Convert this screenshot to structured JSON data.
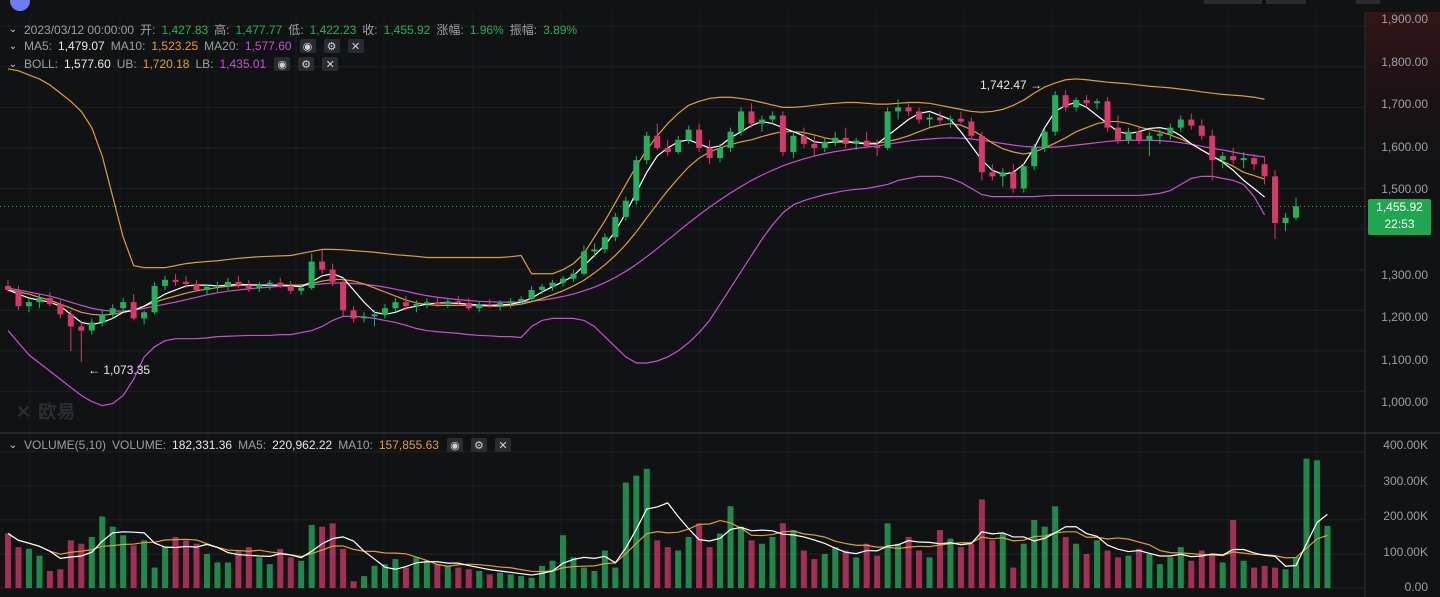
{
  "header": {
    "date": "2023/03/12 00:00:00",
    "open_label": "开:",
    "open": "1,427.83",
    "high_label": "高:",
    "high": "1,477.77",
    "low_label": "低:",
    "low": "1,422.23",
    "close_label": "收:",
    "close": "1,455.92",
    "change_label": "涨幅:",
    "change": "1.96%",
    "amplitude_label": "振幅:",
    "amplitude": "3.89%"
  },
  "ma_legend": {
    "ma5_label": "MA5:",
    "ma5": "1,479.07",
    "ma10_label": "MA10:",
    "ma10": "1,523.25",
    "ma20_label": "MA20:",
    "ma20": "1,577.60"
  },
  "boll_legend": {
    "boll_label": "BOLL:",
    "boll": "1,577.60",
    "ub_label": "UB:",
    "ub": "1,720.18",
    "lb_label": "LB:",
    "lb": "1,435.01"
  },
  "volume_legend": {
    "title": "VOLUME(5,10)",
    "volume_label": "VOLUME:",
    "volume": "182,331.36",
    "ma5_label": "MA5:",
    "ma5": "220,962.22",
    "ma10_label": "MA10:",
    "ma10": "157,855.63"
  },
  "price_axis": [
    "1,900.00",
    "1,800.00",
    "1,700.00",
    "1,600.00",
    "1,500.00",
    "1,300.00",
    "1,200.00",
    "1,100.00",
    "1,000.00"
  ],
  "volume_axis": [
    "400.00K",
    "300.00K",
    "200.00K",
    "100.00K",
    "0.00"
  ],
  "current_price": "1,455.92",
  "countdown": "22:53",
  "annotations": {
    "high": "1,742.47",
    "low": "1,073.35",
    "high_arrow": "→",
    "low_arrow": "←"
  },
  "watermark": "✕ 欧易",
  "icons": {
    "eye": "eye-icon",
    "gear": "gear-icon",
    "close": "close-icon",
    "chevron": "chevron-down-icon"
  },
  "colors": {
    "up": "#23b15d",
    "down": "#d63a6b",
    "ma5": "#ffffff",
    "ma10": "#e0a032",
    "ma20": "#c94fd6",
    "ub": "#e0a032",
    "lb": "#c94fd6",
    "boll_mid": "#ffffff"
  },
  "chart_data": {
    "type": "candlestick",
    "x_range": [
      0,
      126
    ],
    "y_range": [
      900,
      1935
    ],
    "volume_range": [
      0,
      420000
    ],
    "candles": [
      [
        1260,
        1275,
        1245,
        1250
      ],
      [
        1250,
        1260,
        1200,
        1210
      ],
      [
        1210,
        1230,
        1195,
        1220
      ],
      [
        1220,
        1240,
        1205,
        1230
      ],
      [
        1230,
        1245,
        1210,
        1215
      ],
      [
        1215,
        1225,
        1180,
        1190
      ],
      [
        1190,
        1200,
        1100,
        1160
      ],
      [
        1160,
        1175,
        1073,
        1150
      ],
      [
        1150,
        1180,
        1140,
        1170
      ],
      [
        1170,
        1200,
        1160,
        1190
      ],
      [
        1190,
        1215,
        1180,
        1205
      ],
      [
        1205,
        1230,
        1195,
        1220
      ],
      [
        1220,
        1240,
        1175,
        1180
      ],
      [
        1180,
        1200,
        1165,
        1195
      ],
      [
        1195,
        1270,
        1190,
        1260
      ],
      [
        1260,
        1285,
        1250,
        1275
      ],
      [
        1275,
        1290,
        1260,
        1270
      ],
      [
        1270,
        1285,
        1255,
        1265
      ],
      [
        1265,
        1275,
        1245,
        1250
      ],
      [
        1250,
        1265,
        1240,
        1258
      ],
      [
        1258,
        1270,
        1245,
        1260
      ],
      [
        1260,
        1280,
        1250,
        1270
      ],
      [
        1270,
        1285,
        1255,
        1262
      ],
      [
        1262,
        1275,
        1245,
        1255
      ],
      [
        1255,
        1270,
        1245,
        1262
      ],
      [
        1262,
        1275,
        1250,
        1268
      ],
      [
        1268,
        1280,
        1255,
        1260
      ],
      [
        1260,
        1272,
        1240,
        1248
      ],
      [
        1248,
        1265,
        1238,
        1255
      ],
      [
        1255,
        1340,
        1250,
        1320
      ],
      [
        1320,
        1350,
        1290,
        1300
      ],
      [
        1300,
        1315,
        1260,
        1270
      ],
      [
        1270,
        1280,
        1185,
        1200
      ],
      [
        1200,
        1210,
        1170,
        1180
      ],
      [
        1180,
        1195,
        1170,
        1185
      ],
      [
        1185,
        1200,
        1160,
        1190
      ],
      [
        1190,
        1215,
        1180,
        1205
      ],
      [
        1205,
        1230,
        1195,
        1220
      ],
      [
        1220,
        1235,
        1200,
        1210
      ],
      [
        1210,
        1225,
        1195,
        1215
      ],
      [
        1215,
        1230,
        1205,
        1220
      ],
      [
        1220,
        1232,
        1208,
        1215
      ],
      [
        1215,
        1228,
        1205,
        1222
      ],
      [
        1222,
        1235,
        1210,
        1218
      ],
      [
        1218,
        1230,
        1200,
        1205
      ],
      [
        1205,
        1222,
        1195,
        1215
      ],
      [
        1215,
        1228,
        1205,
        1212
      ],
      [
        1212,
        1225,
        1200,
        1218
      ],
      [
        1218,
        1230,
        1205,
        1222
      ],
      [
        1222,
        1235,
        1215,
        1228
      ],
      [
        1228,
        1260,
        1220,
        1250
      ],
      [
        1250,
        1265,
        1240,
        1258
      ],
      [
        1258,
        1275,
        1248,
        1268
      ],
      [
        1268,
        1285,
        1258,
        1278
      ],
      [
        1278,
        1300,
        1270,
        1290
      ],
      [
        1290,
        1360,
        1285,
        1345
      ],
      [
        1345,
        1365,
        1330,
        1350
      ],
      [
        1350,
        1390,
        1340,
        1380
      ],
      [
        1380,
        1440,
        1370,
        1430
      ],
      [
        1430,
        1480,
        1420,
        1470
      ],
      [
        1470,
        1580,
        1460,
        1570
      ],
      [
        1570,
        1640,
        1560,
        1630
      ],
      [
        1630,
        1660,
        1595,
        1600
      ],
      [
        1600,
        1620,
        1580,
        1590
      ],
      [
        1590,
        1630,
        1585,
        1620
      ],
      [
        1620,
        1655,
        1610,
        1645
      ],
      [
        1645,
        1660,
        1590,
        1600
      ],
      [
        1600,
        1620,
        1560,
        1575
      ],
      [
        1575,
        1610,
        1565,
        1600
      ],
      [
        1600,
        1650,
        1590,
        1640
      ],
      [
        1640,
        1700,
        1630,
        1690
      ],
      [
        1690,
        1710,
        1650,
        1660
      ],
      [
        1660,
        1680,
        1640,
        1670
      ],
      [
        1670,
        1690,
        1660,
        1680
      ],
      [
        1680,
        1690,
        1580,
        1590
      ],
      [
        1590,
        1640,
        1575,
        1630
      ],
      [
        1630,
        1650,
        1600,
        1610
      ],
      [
        1610,
        1630,
        1580,
        1600
      ],
      [
        1600,
        1625,
        1590,
        1615
      ],
      [
        1615,
        1640,
        1605,
        1625
      ],
      [
        1625,
        1650,
        1600,
        1610
      ],
      [
        1610,
        1625,
        1595,
        1618
      ],
      [
        1618,
        1640,
        1600,
        1605
      ],
      [
        1605,
        1620,
        1580,
        1600
      ],
      [
        1600,
        1700,
        1595,
        1690
      ],
      [
        1690,
        1720,
        1670,
        1700
      ],
      [
        1700,
        1715,
        1680,
        1690
      ],
      [
        1690,
        1700,
        1660,
        1670
      ],
      [
        1670,
        1685,
        1650,
        1675
      ],
      [
        1675,
        1690,
        1660,
        1668
      ],
      [
        1668,
        1680,
        1650,
        1672
      ],
      [
        1672,
        1690,
        1660,
        1665
      ],
      [
        1665,
        1675,
        1620,
        1630
      ],
      [
        1630,
        1640,
        1520,
        1540
      ],
      [
        1540,
        1560,
        1520,
        1530
      ],
      [
        1530,
        1550,
        1505,
        1540
      ],
      [
        1540,
        1560,
        1490,
        1500
      ],
      [
        1500,
        1560,
        1490,
        1555
      ],
      [
        1555,
        1610,
        1545,
        1600
      ],
      [
        1600,
        1645,
        1590,
        1640
      ],
      [
        1640,
        1740,
        1630,
        1730
      ],
      [
        1730,
        1742,
        1690,
        1700
      ],
      [
        1700,
        1725,
        1690,
        1718
      ],
      [
        1718,
        1730,
        1700,
        1710
      ],
      [
        1710,
        1722,
        1695,
        1715
      ],
      [
        1715,
        1725,
        1640,
        1650
      ],
      [
        1650,
        1680,
        1610,
        1620
      ],
      [
        1620,
        1650,
        1610,
        1640
      ],
      [
        1640,
        1650,
        1610,
        1620
      ],
      [
        1620,
        1640,
        1580,
        1630
      ],
      [
        1630,
        1645,
        1610,
        1635
      ],
      [
        1635,
        1660,
        1620,
        1650
      ],
      [
        1650,
        1680,
        1640,
        1670
      ],
      [
        1670,
        1685,
        1645,
        1655
      ],
      [
        1655,
        1670,
        1620,
        1630
      ],
      [
        1630,
        1645,
        1520,
        1570
      ],
      [
        1570,
        1590,
        1550,
        1580
      ],
      [
        1580,
        1600,
        1560,
        1570
      ],
      [
        1570,
        1590,
        1550,
        1575
      ],
      [
        1575,
        1585,
        1545,
        1560
      ],
      [
        1560,
        1580,
        1510,
        1530
      ],
      [
        1530,
        1545,
        1375,
        1415
      ],
      [
        1415,
        1440,
        1395,
        1428
      ],
      [
        1428,
        1478,
        1422,
        1456
      ]
    ],
    "volumes": [
      160000,
      120000,
      115000,
      95000,
      50000,
      55000,
      140000,
      130000,
      150000,
      210000,
      180000,
      155000,
      125000,
      140000,
      60000,
      120000,
      150000,
      140000,
      130000,
      100000,
      75000,
      75000,
      110000,
      120000,
      90000,
      70000,
      115000,
      90000,
      80000,
      185000,
      180000,
      190000,
      115000,
      20000,
      35000,
      65000,
      70000,
      85000,
      60000,
      90000,
      80000,
      70000,
      65000,
      60000,
      55000,
      50000,
      40000,
      45000,
      40000,
      35000,
      30000,
      65000,
      80000,
      155000,
      90000,
      60000,
      50000,
      110000,
      60000,
      310000,
      330000,
      350000,
      140000,
      120000,
      110000,
      150000,
      190000,
      120000,
      160000,
      240000,
      180000,
      140000,
      130000,
      150000,
      190000,
      170000,
      110000,
      85000,
      100000,
      120000,
      110000,
      90000,
      130000,
      95000,
      190000,
      130000,
      150000,
      110000,
      90000,
      170000,
      145000,
      120000,
      130000,
      260000,
      140000,
      160000,
      60000,
      130000,
      200000,
      180000,
      240000,
      150000,
      130000,
      100000,
      140000,
      110000,
      90000,
      95000,
      115000,
      100000,
      70000,
      90000,
      120000,
      80000,
      110000,
      100000,
      75000,
      200000,
      80000,
      60000,
      65000,
      60000,
      55000,
      90000,
      380000,
      375000,
      182331
    ],
    "ma5": [
      1250,
      1240,
      1230,
      1225,
      1220,
      1210,
      1190,
      1170,
      1165,
      1170,
      1180,
      1195,
      1200,
      1210,
      1225,
      1240,
      1250,
      1260,
      1262,
      1262,
      1260,
      1262,
      1264,
      1263,
      1262,
      1262,
      1262,
      1260,
      1258,
      1270,
      1285,
      1290,
      1280,
      1250,
      1220,
      1195,
      1190,
      1195,
      1205,
      1210,
      1215,
      1218,
      1218,
      1217,
      1215,
      1213,
      1212,
      1213,
      1215,
      1220,
      1230,
      1245,
      1258,
      1270,
      1285,
      1310,
      1335,
      1360,
      1395,
      1440,
      1490,
      1540,
      1580,
      1600,
      1615,
      1620,
      1610,
      1600,
      1605,
      1625,
      1640,
      1655,
      1665,
      1660,
      1650,
      1640,
      1630,
      1615,
      1612,
      1615,
      1615,
      1612,
      1610,
      1610,
      1630,
      1650,
      1670,
      1685,
      1690,
      1680,
      1670,
      1640,
      1605,
      1570,
      1545,
      1535,
      1540,
      1560,
      1600,
      1650,
      1690,
      1705,
      1712,
      1700,
      1680,
      1660,
      1640,
      1635,
      1640,
      1648,
      1650,
      1645,
      1630,
      1610,
      1595,
      1580,
      1565,
      1545,
      1520,
      1500,
      1479
    ],
    "ma10": [
      1252,
      1245,
      1240,
      1232,
      1225,
      1215,
      1205,
      1195,
      1190,
      1188,
      1190,
      1195,
      1200,
      1210,
      1220,
      1228,
      1235,
      1242,
      1248,
      1252,
      1256,
      1259,
      1261,
      1262,
      1262,
      1262,
      1262,
      1262,
      1262,
      1266,
      1272,
      1276,
      1276,
      1272,
      1265,
      1255,
      1245,
      1235,
      1225,
      1218,
      1214,
      1212,
      1212,
      1212,
      1212,
      1211,
      1210,
      1210,
      1212,
      1215,
      1221,
      1229,
      1238,
      1248,
      1260,
      1274,
      1292,
      1312,
      1335,
      1362,
      1393,
      1428,
      1462,
      1495,
      1525,
      1553,
      1575,
      1590,
      1600,
      1608,
      1615,
      1620,
      1628,
      1635,
      1640,
      1640,
      1638,
      1632,
      1625,
      1620,
      1617,
      1614,
      1612,
      1612,
      1616,
      1622,
      1630,
      1640,
      1650,
      1656,
      1660,
      1656,
      1645,
      1630,
      1612,
      1598,
      1590,
      1585,
      1590,
      1600,
      1612,
      1625,
      1640,
      1650,
      1660,
      1665,
      1665,
      1660,
      1652,
      1645,
      1640,
      1632,
      1622,
      1610,
      1595,
      1580,
      1567,
      1555,
      1540,
      1532,
      1523
    ],
    "ma20": [
      1255,
      1250,
      1245,
      1240,
      1235,
      1228,
      1220,
      1212,
      1205,
      1200,
      1198,
      1198,
      1200,
      1205,
      1210,
      1215,
      1220,
      1226,
      1232,
      1238,
      1243,
      1247,
      1250,
      1253,
      1255,
      1257,
      1259,
      1260,
      1261,
      1263,
      1265,
      1267,
      1267,
      1266,
      1264,
      1261,
      1257,
      1252,
      1247,
      1241,
      1236,
      1232,
      1229,
      1226,
      1224,
      1222,
      1221,
      1220,
      1220,
      1220,
      1222,
      1225,
      1229,
      1234,
      1240,
      1248,
      1257,
      1268,
      1281,
      1296,
      1313,
      1332,
      1352,
      1373,
      1394,
      1415,
      1435,
      1454,
      1472,
      1489,
      1505,
      1520,
      1533,
      1545,
      1556,
      1565,
      1573,
      1580,
      1586,
      1591,
      1595,
      1599,
      1602,
      1605,
      1609,
      1613,
      1617,
      1620,
      1622,
      1624,
      1625,
      1624,
      1622,
      1619,
      1615,
      1611,
      1607,
      1604,
      1602,
      1601,
      1602,
      1604,
      1607,
      1610,
      1613,
      1616,
      1618,
      1619,
      1619,
      1619,
      1618,
      1616,
      1613,
      1609,
      1604,
      1599,
      1595,
      1590,
      1585,
      1581,
      1578
    ],
    "ub": [
      1795,
      1790,
      1780,
      1770,
      1755,
      1735,
      1715,
      1690,
      1650,
      1580,
      1480,
      1380,
      1310,
      1305,
      1305,
      1305,
      1310,
      1315,
      1318,
      1320,
      1322,
      1325,
      1328,
      1330,
      1332,
      1333,
      1334,
      1335,
      1340,
      1345,
      1350,
      1350,
      1349,
      1347,
      1345,
      1343,
      1340,
      1337,
      1335,
      1333,
      1330,
      1330,
      1330,
      1330,
      1330,
      1330,
      1330,
      1330,
      1332,
      1335,
      1290,
      1290,
      1290,
      1300,
      1315,
      1340,
      1380,
      1420,
      1465,
      1510,
      1555,
      1595,
      1630,
      1660,
      1685,
      1705,
      1715,
      1722,
      1725,
      1725,
      1722,
      1718,
      1712,
      1706,
      1700,
      1700,
      1702,
      1705,
      1708,
      1710,
      1712,
      1712,
      1710,
      1708,
      1708,
      1710,
      1712,
      1712,
      1710,
      1705,
      1700,
      1695,
      1690,
      1688,
      1690,
      1695,
      1705,
      1718,
      1735,
      1750,
      1760,
      1768,
      1770,
      1768,
      1765,
      1762,
      1760,
      1758,
      1755,
      1752,
      1750,
      1748,
      1745,
      1742,
      1738,
      1735,
      1732,
      1730,
      1728,
      1725,
      1720
    ],
    "lb": [
      1150,
      1120,
      1090,
      1070,
      1050,
      1030,
      1010,
      990,
      975,
      965,
      970,
      990,
      1030,
      1085,
      1110,
      1125,
      1130,
      1130,
      1130,
      1132,
      1135,
      1136,
      1137,
      1138,
      1138,
      1138,
      1140,
      1140,
      1145,
      1150,
      1160,
      1175,
      1185,
      1185,
      1183,
      1180,
      1175,
      1170,
      1163,
      1155,
      1150,
      1147,
      1145,
      1143,
      1140,
      1138,
      1137,
      1135,
      1135,
      1133,
      1160,
      1175,
      1180,
      1180,
      1180,
      1175,
      1160,
      1135,
      1110,
      1085,
      1070,
      1070,
      1075,
      1085,
      1100,
      1120,
      1145,
      1175,
      1215,
      1255,
      1295,
      1335,
      1375,
      1410,
      1440,
      1460,
      1470,
      1478,
      1485,
      1490,
      1495,
      1498,
      1500,
      1505,
      1510,
      1520,
      1525,
      1530,
      1530,
      1530,
      1525,
      1515,
      1500,
      1485,
      1480,
      1480,
      1480,
      1480,
      1480,
      1482,
      1483,
      1483,
      1483,
      1483,
      1483,
      1483,
      1483,
      1483,
      1483,
      1485,
      1488,
      1495,
      1510,
      1525,
      1530,
      1530,
      1525,
      1520,
      1510,
      1480,
      1435
    ]
  }
}
